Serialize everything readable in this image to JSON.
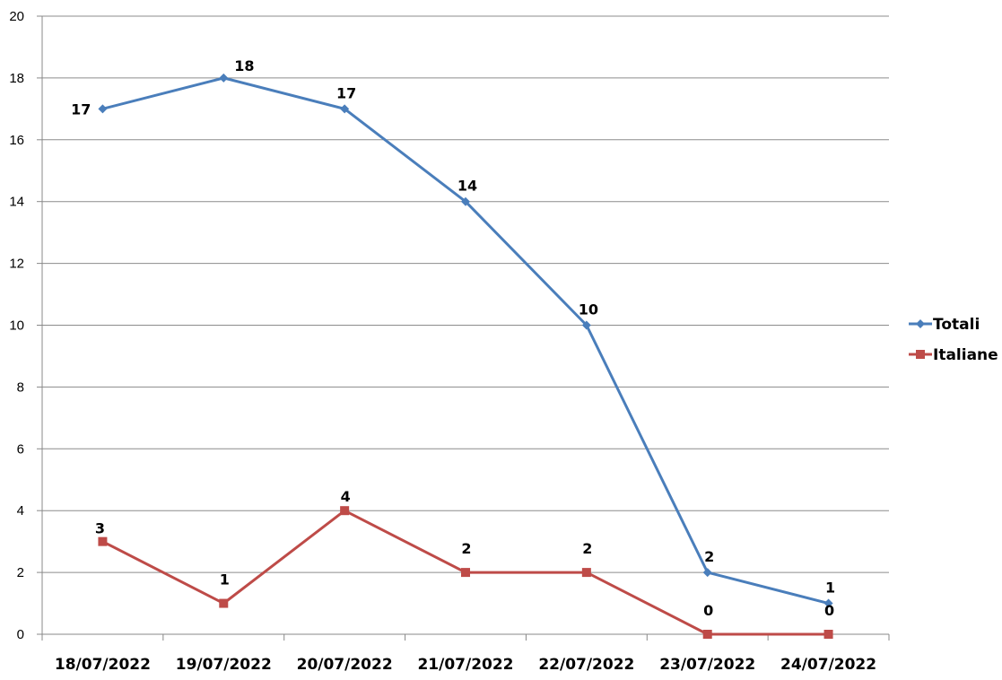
{
  "chart_data": {
    "type": "line",
    "categories": [
      "18/07/2022",
      "19/07/2022",
      "20/07/2022",
      "21/07/2022",
      "22/07/2022",
      "23/07/2022",
      "24/07/2022"
    ],
    "series": [
      {
        "name": "Totali",
        "values": [
          17,
          18,
          17,
          14,
          10,
          2,
          1
        ],
        "color": "#4a7ebb",
        "marker": "diamond"
      },
      {
        "name": "Italiane",
        "values": [
          3,
          1,
          4,
          2,
          2,
          0,
          0
        ],
        "color": "#be4b48",
        "marker": "square"
      }
    ],
    "ylim": [
      0,
      20
    ],
    "yticks": [
      "0",
      "2",
      "4",
      "6",
      "8",
      "10",
      "12",
      "14",
      "16",
      "18",
      "20"
    ],
    "grid": true,
    "legend": "right"
  }
}
